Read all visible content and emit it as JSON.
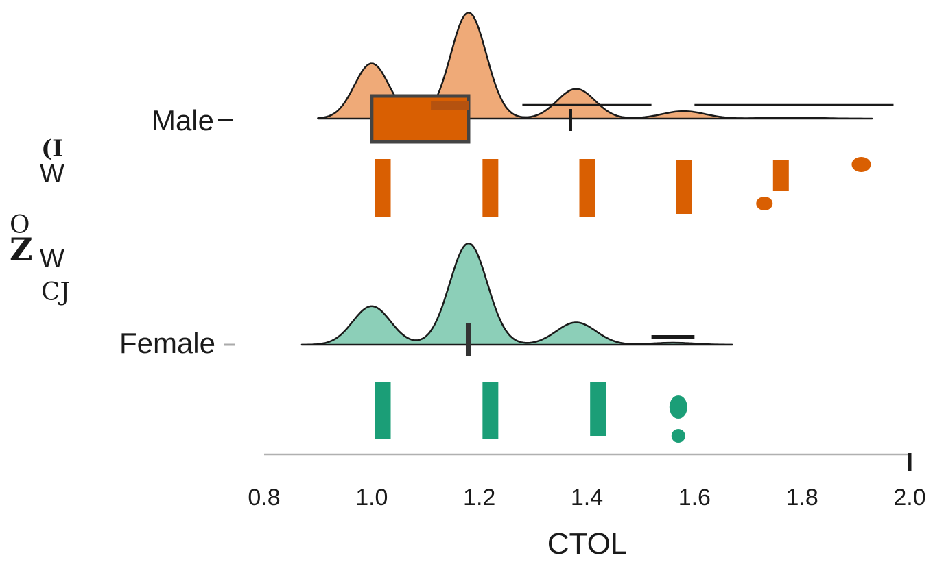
{
  "chart_data": {
    "type": "raincloud",
    "xlabel": "CTOL",
    "ylabel_fragments": [
      "(I",
      "W",
      "O",
      "Z",
      "W",
      "CJ"
    ],
    "xlim": [
      0.8,
      2.0
    ],
    "x_ticks": [
      "0.8",
      "1.0",
      "1.2",
      "1.4",
      "1.6",
      "1.8",
      "2.0"
    ],
    "x_tick_values": [
      0.8,
      1.0,
      1.2,
      1.4,
      1.6,
      1.8,
      2.0
    ],
    "groups": [
      {
        "name": "Male",
        "color": "#d95f02",
        "density_fill": "#efaa78",
        "density": {
          "range": [
            0.9,
            1.93
          ],
          "peaks": [
            {
              "x": 1.0,
              "height": 0.52,
              "sd": 0.032
            },
            {
              "x": 1.18,
              "height": 1.0,
              "sd": 0.033
            },
            {
              "x": 1.38,
              "height": 0.28,
              "sd": 0.035
            },
            {
              "x": 1.58,
              "height": 0.07,
              "sd": 0.04
            },
            {
              "x": 1.78,
              "height": 0.01,
              "sd": 0.05
            }
          ]
        },
        "box": {
          "q1": 1.0,
          "median": 1.18,
          "q3": 1.18,
          "mean": 1.37
        },
        "interval_lines": [
          [
            1.28,
            1.52
          ],
          [
            1.6,
            1.97
          ]
        ],
        "raw_bars": [
          1.02,
          1.22,
          1.4,
          1.58,
          1.76
        ],
        "outliers": [
          1.91,
          1.73
        ]
      },
      {
        "name": "Female",
        "color": "#1b9e77",
        "density_fill": "#8ccfb8",
        "density": {
          "range": [
            0.87,
            1.67
          ],
          "peaks": [
            {
              "x": 1.0,
              "height": 0.38,
              "sd": 0.035
            },
            {
              "x": 1.18,
              "height": 1.0,
              "sd": 0.035
            },
            {
              "x": 1.38,
              "height": 0.22,
              "sd": 0.037
            },
            {
              "x": 1.56,
              "height": 0.02,
              "sd": 0.04
            }
          ]
        },
        "box": {
          "median": 1.18
        },
        "interval_lines": [
          [
            1.52,
            1.6
          ]
        ],
        "raw_bars": [
          1.02,
          1.22,
          1.42
        ],
        "outliers": [
          1.57,
          1.57
        ]
      }
    ]
  }
}
